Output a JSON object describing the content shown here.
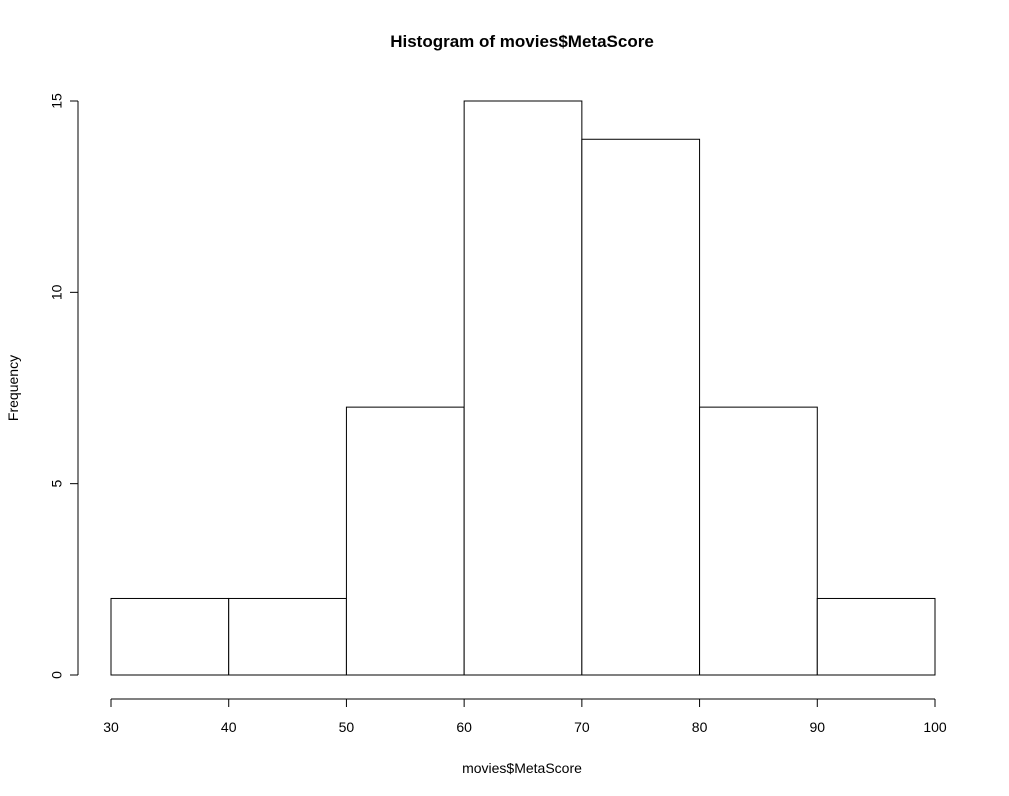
{
  "chart_data": {
    "type": "histogram",
    "title": "Histogram of movies$MetaScore",
    "xlabel": "movies$MetaScore",
    "ylabel": "Frequency",
    "bins": [
      {
        "from": 30,
        "to": 40,
        "count": 2
      },
      {
        "from": 40,
        "to": 50,
        "count": 2
      },
      {
        "from": 50,
        "to": 60,
        "count": 7
      },
      {
        "from": 60,
        "to": 70,
        "count": 15
      },
      {
        "from": 70,
        "to": 80,
        "count": 14
      },
      {
        "from": 80,
        "to": 90,
        "count": 7
      },
      {
        "from": 90,
        "to": 100,
        "count": 2
      }
    ],
    "xlim": [
      30,
      100
    ],
    "ylim": [
      0,
      15
    ],
    "x_ticks": [
      30,
      40,
      50,
      60,
      70,
      80,
      90,
      100
    ],
    "y_ticks": [
      0,
      5,
      10,
      15
    ],
    "grid": false,
    "bar_fill": "#ffffff",
    "bar_stroke": "#000000"
  }
}
